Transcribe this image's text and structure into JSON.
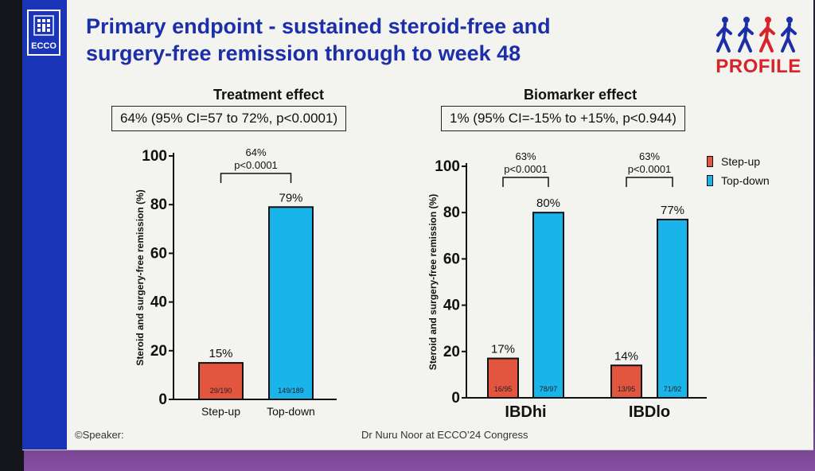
{
  "slide": {
    "title_line1": "Primary endpoint - sustained steroid-free and",
    "title_line2": "surgery-free remission through to week 48",
    "logo_text": "ECCO",
    "brand_text": "PROFILE",
    "footer_left": "©Speaker:",
    "footer_mid": "Dr Nuru Noor  at ECCO’24 Congress"
  },
  "left_panel": {
    "heading": "Treatment effect",
    "stat": "64% (95% CI=57 to 72%, p<0.0001)"
  },
  "right_panel": {
    "heading": "Biomarker effect",
    "stat": "1% (95% CI=-15% to +15%, p<0.944)"
  },
  "legend": {
    "items": [
      {
        "label": "Step-up"
      },
      {
        "label": "Top-down"
      }
    ]
  },
  "colors": {
    "step_up": "#e2553f",
    "top_down": "#19b4ea",
    "title_blue": "#1d2fa8",
    "brand_red": "#d8232a"
  },
  "chart_data": [
    {
      "type": "bar",
      "title": "Treatment effect",
      "ylabel": "Steroid and surgery-free remission (%)",
      "ylim": [
        0,
        100
      ],
      "yticks": [
        0,
        20,
        40,
        60,
        80,
        100
      ],
      "categories": [
        "Step-up",
        "Top-down"
      ],
      "values": [
        15,
        79
      ],
      "value_labels": [
        "15%",
        "79%"
      ],
      "counts": [
        "29/190",
        "149/189"
      ],
      "series_keys": [
        "step_up",
        "top_down"
      ],
      "comparisons": [
        {
          "from": 0,
          "to": 1,
          "label1": "64%",
          "label2": "p<0.0001"
        }
      ]
    },
    {
      "type": "bar",
      "title": "Biomarker effect",
      "ylabel": "Steroid and surgery-free remission (%)",
      "ylim": [
        0,
        100
      ],
      "yticks": [
        0,
        20,
        40,
        60,
        80,
        100
      ],
      "groups": [
        {
          "name": "IBDhi",
          "values": [
            17,
            80
          ],
          "value_labels": [
            "17%",
            "80%"
          ],
          "counts": [
            "16/95",
            "78/97"
          ],
          "comparison": {
            "label1": "63%",
            "label2": "p<0.0001"
          }
        },
        {
          "name": "IBDlo",
          "values": [
            14,
            77
          ],
          "value_labels": [
            "14%",
            "77%"
          ],
          "counts": [
            "13/95",
            "71/92"
          ],
          "comparison": {
            "label1": "63%",
            "label2": "p<0.0001"
          }
        }
      ],
      "series": [
        {
          "name": "Step-up",
          "key": "step_up"
        },
        {
          "name": "Top-down",
          "key": "top_down"
        }
      ]
    }
  ]
}
